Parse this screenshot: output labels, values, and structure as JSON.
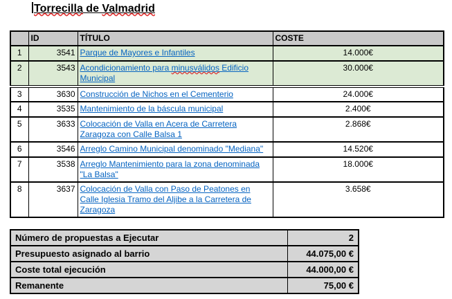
{
  "page": {
    "title": "Torrecilla de Valmadrid",
    "misspelled_words": [
      "Torrecilla",
      "Valmadrid"
    ]
  },
  "colors": {
    "highlight_green": "#dcead4",
    "header_gray": "#c9c9c9",
    "summary_gray": "#d5d5d5",
    "link_blue": "#0563c1",
    "border_black": "#000000",
    "spellcheck_red": "#e03030"
  },
  "main_table": {
    "headers": {
      "rownum": "",
      "id": "ID",
      "titulo": "TÍTULO",
      "coste": "COSTE"
    },
    "rows": [
      {
        "num": "1",
        "id": "3541",
        "titulo": "Parque de Mayores e Infantiles",
        "coste": "14.000€",
        "highlighted": true,
        "misspelled": []
      },
      {
        "num": "2",
        "id": "3543",
        "titulo": "Acondicionamiento para minusválidos Edificio Municipal",
        "coste": "30.000€",
        "highlighted": true,
        "misspelled": [
          "minusválidos"
        ]
      },
      {
        "num": "3",
        "id": "3630",
        "titulo": "Construcción de Nichos en el Cementerio",
        "coste": "24.000€",
        "highlighted": false,
        "misspelled": []
      },
      {
        "num": "4",
        "id": "3535",
        "titulo": "Mantenimiento de la báscula municipal",
        "coste": "2.400€",
        "highlighted": false,
        "misspelled": []
      },
      {
        "num": "5",
        "id": "3633",
        "titulo": "Colocación de Valla en Acera de Carretera Zaragoza con Calle Balsa 1",
        "coste": "2.868€",
        "highlighted": false,
        "misspelled": []
      },
      {
        "num": "6",
        "id": "3546",
        "titulo": "Arreglo Camino Municipal denominado \"Mediana\"",
        "coste": "14.520€",
        "highlighted": false,
        "misspelled": []
      },
      {
        "num": "7",
        "id": "3538",
        "titulo": "Arreglo Mantenimiento para la zona denominada \"La Balsa\"",
        "coste": "18.000€",
        "highlighted": false,
        "misspelled": []
      },
      {
        "num": "8",
        "id": "3637",
        "titulo": "Colocación de Valla con Paso de Peatones en Calle Iglesia Tramo del Aljibe a la Carretera de Zaragoza",
        "coste": "3.658€",
        "highlighted": false,
        "misspelled": []
      }
    ]
  },
  "summary_table": {
    "rows": [
      {
        "label": "Número de propuestas a Ejecutar",
        "value": "2"
      },
      {
        "label": "Presupuesto asignado al barrio",
        "value": "44.075,00 €"
      },
      {
        "label": "Coste total ejecución",
        "value": "44.000,00 €"
      },
      {
        "label": "Remanente",
        "value": "75,00 €"
      }
    ]
  }
}
